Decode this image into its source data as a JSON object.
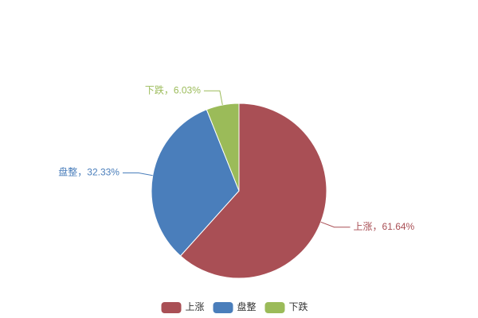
{
  "chart_data": {
    "type": "pie",
    "categories": [
      "上涨",
      "盘整",
      "下跌"
    ],
    "values": [
      61.64,
      32.33,
      6.03
    ],
    "value_labels": [
      "上涨，61.64%",
      "盘整，32.33%",
      "下跌，6.03%"
    ],
    "colors": [
      "#a94f55",
      "#4a7ebb",
      "#9bbb59"
    ],
    "legend": "bottom"
  }
}
